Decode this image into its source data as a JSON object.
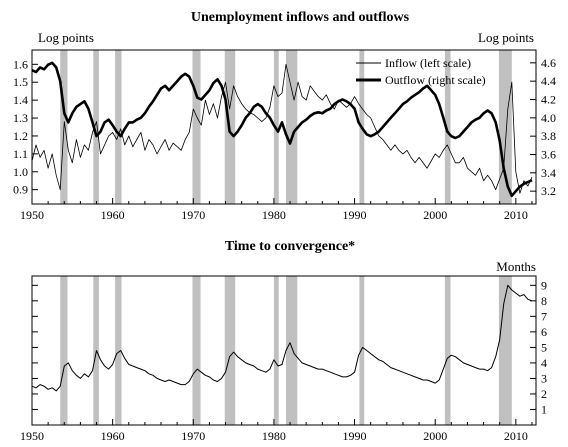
{
  "chart_data": [
    {
      "type": "line",
      "title": "Unemployment inflows and outflows",
      "ylabel_left": "Log points",
      "ylabel_right": "Log points",
      "xlim": [
        1950,
        2012.5
      ],
      "ylim_left": [
        0.82,
        1.68
      ],
      "ylim_right": [
        3.06,
        4.74
      ],
      "xticks": [
        1950,
        1960,
        1970,
        1980,
        1990,
        2000,
        2010
      ],
      "yticks_left": [
        0.9,
        1.0,
        1.1,
        1.2,
        1.3,
        1.4,
        1.5,
        1.6
      ],
      "yticks_left_labels": [
        "0.9",
        "1.0",
        "1.1",
        "1.2",
        "1.3",
        "1.4",
        "1.5",
        "1.6"
      ],
      "yticks_right": [
        3.2,
        3.4,
        3.6,
        3.8,
        4.0,
        4.2,
        4.4,
        4.6
      ],
      "yticks_right_labels": [
        "3.2",
        "3.4",
        "3.6",
        "3.8",
        "4.0",
        "4.2",
        "4.4",
        "4.6"
      ],
      "legend_position": "top-right",
      "recessions": [
        [
          1953.5,
          1954.4
        ],
        [
          1957.6,
          1958.3
        ],
        [
          1960.3,
          1961.1
        ],
        [
          1969.9,
          1970.9
        ],
        [
          1973.9,
          1975.2
        ],
        [
          1980.0,
          1980.6
        ],
        [
          1981.5,
          1982.9
        ],
        [
          1990.6,
          1991.2
        ],
        [
          2001.2,
          2001.9
        ],
        [
          2007.9,
          2009.5
        ]
      ],
      "series": [
        {
          "name": "Inflow (left scale)",
          "axis": "left",
          "style": "thin",
          "x": [
            1950,
            1950.5,
            1951,
            1951.5,
            1952,
            1952.5,
            1953,
            1953.5,
            1954,
            1954.5,
            1955,
            1955.5,
            1956,
            1956.5,
            1957,
            1957.5,
            1958,
            1958.5,
            1959,
            1959.5,
            1960,
            1960.5,
            1961,
            1961.5,
            1962,
            1962.5,
            1963,
            1963.5,
            1964,
            1964.5,
            1965,
            1965.5,
            1966,
            1966.5,
            1967,
            1967.5,
            1968,
            1968.5,
            1969,
            1969.5,
            1970,
            1970.5,
            1971,
            1971.5,
            1972,
            1972.5,
            1973,
            1973.5,
            1974,
            1974.5,
            1975,
            1975.5,
            1976,
            1976.5,
            1977,
            1977.5,
            1978,
            1978.5,
            1979,
            1979.5,
            1980,
            1980.5,
            1981,
            1981.5,
            1982,
            1982.5,
            1983,
            1983.5,
            1984,
            1984.5,
            1985,
            1985.5,
            1986,
            1986.5,
            1987,
            1987.5,
            1988,
            1988.5,
            1989,
            1989.5,
            1990,
            1990.5,
            1991,
            1991.5,
            1992,
            1992.5,
            1993,
            1993.5,
            1994,
            1994.5,
            1995,
            1995.5,
            1996,
            1996.5,
            1997,
            1997.5,
            1998,
            1998.5,
            1999,
            1999.5,
            2000,
            2000.5,
            2001,
            2001.5,
            2002,
            2002.5,
            2003,
            2003.5,
            2004,
            2004.5,
            2005,
            2005.5,
            2006,
            2006.5,
            2007,
            2007.5,
            2008,
            2008.5,
            2009,
            2009.5,
            2010,
            2010.5,
            2011,
            2011.5,
            2012
          ],
          "y": [
            1.06,
            1.15,
            1.08,
            1.12,
            1.02,
            1.1,
            0.98,
            0.9,
            1.28,
            1.12,
            1.05,
            1.18,
            1.08,
            1.15,
            1.12,
            1.22,
            1.28,
            1.1,
            1.15,
            1.2,
            1.22,
            1.18,
            1.24,
            1.15,
            1.2,
            1.14,
            1.18,
            1.22,
            1.12,
            1.18,
            1.15,
            1.1,
            1.14,
            1.18,
            1.12,
            1.16,
            1.14,
            1.12,
            1.18,
            1.22,
            1.35,
            1.3,
            1.26,
            1.4,
            1.32,
            1.38,
            1.3,
            1.42,
            1.5,
            1.35,
            1.48,
            1.42,
            1.38,
            1.35,
            1.33,
            1.32,
            1.3,
            1.28,
            1.3,
            1.36,
            1.48,
            1.42,
            1.44,
            1.6,
            1.5,
            1.4,
            1.5,
            1.42,
            1.4,
            1.48,
            1.45,
            1.42,
            1.4,
            1.43,
            1.38,
            1.35,
            1.4,
            1.38,
            1.36,
            1.38,
            1.42,
            1.38,
            1.35,
            1.32,
            1.3,
            1.25,
            1.2,
            1.18,
            1.15,
            1.12,
            1.15,
            1.12,
            1.1,
            1.12,
            1.08,
            1.05,
            1.08,
            1.05,
            1.02,
            1.06,
            1.1,
            1.08,
            1.12,
            1.15,
            1.1,
            1.05,
            1.05,
            1.08,
            1.02,
            1.0,
            0.98,
            1.02,
            0.95,
            0.98,
            0.95,
            0.9,
            0.96,
            1.02,
            1.35,
            1.5,
            1.0,
            0.88,
            0.95,
            0.92,
            0.97
          ]
        },
        {
          "name": "Outflow (right scale)",
          "axis": "right",
          "style": "thick",
          "x": [
            1950,
            1950.5,
            1951,
            1951.5,
            1952,
            1952.5,
            1953,
            1953.5,
            1954,
            1954.5,
            1955,
            1955.5,
            1956,
            1956.5,
            1957,
            1957.5,
            1958,
            1958.5,
            1959,
            1959.5,
            1960,
            1960.5,
            1961,
            1961.5,
            1962,
            1962.5,
            1963,
            1963.5,
            1964,
            1964.5,
            1965,
            1965.5,
            1966,
            1966.5,
            1967,
            1967.5,
            1968,
            1968.5,
            1969,
            1969.5,
            1970,
            1970.5,
            1971,
            1971.5,
            1972,
            1972.5,
            1973,
            1973.5,
            1974,
            1974.5,
            1975,
            1975.5,
            1976,
            1976.5,
            1977,
            1977.5,
            1978,
            1978.5,
            1979,
            1979.5,
            1980,
            1980.5,
            1981,
            1981.5,
            1982,
            1982.5,
            1983,
            1983.5,
            1984,
            1984.5,
            1985,
            1985.5,
            1986,
            1986.5,
            1987,
            1987.5,
            1988,
            1988.5,
            1989,
            1989.5,
            1990,
            1990.5,
            1991,
            1991.5,
            1992,
            1992.5,
            1993,
            1993.5,
            1994,
            1994.5,
            1995,
            1995.5,
            1996,
            1996.5,
            1997,
            1997.5,
            1998,
            1998.5,
            1999,
            1999.5,
            2000,
            2000.5,
            2001,
            2001.5,
            2002,
            2002.5,
            2003,
            2003.5,
            2004,
            2004.5,
            2005,
            2005.5,
            2006,
            2006.5,
            2007,
            2007.5,
            2008,
            2008.5,
            2009,
            2009.5,
            2010,
            2010.5,
            2011,
            2011.5,
            2012
          ],
          "y": [
            4.52,
            4.5,
            4.55,
            4.53,
            4.58,
            4.6,
            4.55,
            4.4,
            4.05,
            3.95,
            4.05,
            4.12,
            4.15,
            4.18,
            4.1,
            3.95,
            3.8,
            3.85,
            3.95,
            3.98,
            3.92,
            3.85,
            3.8,
            3.88,
            3.95,
            3.95,
            3.98,
            4.0,
            4.05,
            4.12,
            4.18,
            4.25,
            4.32,
            4.35,
            4.3,
            4.35,
            4.4,
            4.45,
            4.48,
            4.45,
            4.35,
            4.22,
            4.2,
            4.25,
            4.3,
            4.38,
            4.42,
            4.35,
            4.2,
            3.85,
            3.8,
            3.85,
            3.92,
            4.0,
            4.05,
            4.12,
            4.15,
            4.12,
            4.05,
            4.0,
            3.92,
            3.85,
            3.95,
            3.82,
            3.72,
            3.85,
            3.9,
            3.95,
            3.98,
            4.02,
            4.05,
            4.06,
            4.05,
            4.08,
            4.1,
            4.15,
            4.18,
            4.2,
            4.18,
            4.15,
            4.1,
            3.95,
            3.88,
            3.82,
            3.8,
            3.82,
            3.85,
            3.9,
            3.95,
            4.0,
            4.05,
            4.1,
            4.15,
            4.18,
            4.22,
            4.25,
            4.28,
            4.32,
            4.35,
            4.3,
            4.25,
            4.15,
            4.0,
            3.85,
            3.8,
            3.78,
            3.8,
            3.85,
            3.9,
            3.95,
            3.98,
            4.0,
            4.05,
            4.08,
            4.05,
            3.95,
            3.75,
            3.45,
            3.25,
            3.15,
            3.2,
            3.25,
            3.28,
            3.3,
            3.32
          ]
        }
      ]
    },
    {
      "type": "line",
      "title": "Time to convergence*",
      "ylabel_right": "Months",
      "xlim": [
        1950,
        2012.5
      ],
      "ylim": [
        0,
        9.6
      ],
      "xticks": [
        1950,
        1960,
        1970,
        1980,
        1990,
        2000,
        2010
      ],
      "yticks": [
        1,
        2,
        3,
        4,
        5,
        6,
        7,
        8,
        9
      ],
      "ytick_labels": [
        "1",
        "2",
        "3",
        "4",
        "5",
        "6",
        "7",
        "8",
        "9"
      ],
      "recessions": [
        [
          1953.5,
          1954.4
        ],
        [
          1957.6,
          1958.3
        ],
        [
          1960.3,
          1961.1
        ],
        [
          1969.9,
          1970.9
        ],
        [
          1973.9,
          1975.2
        ],
        [
          1980.0,
          1980.6
        ],
        [
          1981.5,
          1982.9
        ],
        [
          1990.6,
          1991.2
        ],
        [
          2001.2,
          2001.9
        ],
        [
          2007.9,
          2009.5
        ]
      ],
      "series": [
        {
          "style": "thin",
          "x": [
            1950,
            1950.5,
            1951,
            1951.5,
            1952,
            1952.5,
            1953,
            1953.5,
            1954,
            1954.5,
            1955,
            1955.5,
            1956,
            1956.5,
            1957,
            1957.5,
            1958,
            1958.5,
            1959,
            1959.5,
            1960,
            1960.5,
            1961,
            1961.5,
            1962,
            1962.5,
            1963,
            1963.5,
            1964,
            1964.5,
            1965,
            1965.5,
            1966,
            1966.5,
            1967,
            1967.5,
            1968,
            1968.5,
            1969,
            1969.5,
            1970,
            1970.5,
            1971,
            1971.5,
            1972,
            1972.5,
            1973,
            1973.5,
            1974,
            1974.5,
            1975,
            1975.5,
            1976,
            1976.5,
            1977,
            1977.5,
            1978,
            1978.5,
            1979,
            1979.5,
            1980,
            1980.5,
            1981,
            1981.5,
            1982,
            1982.5,
            1983,
            1983.5,
            1984,
            1984.5,
            1985,
            1985.5,
            1986,
            1986.5,
            1987,
            1987.5,
            1988,
            1988.5,
            1989,
            1989.5,
            1990,
            1990.5,
            1991,
            1991.5,
            1992,
            1992.5,
            1993,
            1993.5,
            1994,
            1994.5,
            1995,
            1995.5,
            1996,
            1996.5,
            1997,
            1997.5,
            1998,
            1998.5,
            1999,
            1999.5,
            2000,
            2000.5,
            2001,
            2001.5,
            2002,
            2002.5,
            2003,
            2003.5,
            2004,
            2004.5,
            2005,
            2005.5,
            2006,
            2006.5,
            2007,
            2007.5,
            2008,
            2008.5,
            2009,
            2009.5,
            2010,
            2010.5,
            2011,
            2011.5,
            2012
          ],
          "y": [
            2.5,
            2.4,
            2.6,
            2.5,
            2.3,
            2.4,
            2.2,
            2.5,
            3.8,
            4.0,
            3.5,
            3.2,
            3.0,
            3.3,
            3.1,
            3.5,
            4.8,
            4.2,
            3.8,
            3.6,
            3.9,
            4.6,
            4.8,
            4.3,
            3.9,
            3.8,
            3.7,
            3.6,
            3.5,
            3.3,
            3.2,
            3.0,
            2.9,
            2.8,
            2.9,
            2.8,
            2.7,
            2.6,
            2.6,
            2.8,
            3.3,
            3.6,
            3.4,
            3.2,
            3.1,
            2.9,
            2.8,
            3.0,
            3.4,
            4.4,
            4.7,
            4.4,
            4.2,
            4.0,
            3.9,
            3.8,
            3.6,
            3.5,
            3.4,
            3.6,
            4.2,
            3.8,
            3.9,
            4.8,
            5.3,
            4.6,
            4.3,
            4.0,
            3.9,
            3.8,
            3.7,
            3.6,
            3.6,
            3.5,
            3.4,
            3.3,
            3.2,
            3.1,
            3.1,
            3.2,
            3.4,
            4.5,
            5.0,
            4.8,
            4.6,
            4.4,
            4.2,
            4.1,
            3.9,
            3.7,
            3.6,
            3.5,
            3.4,
            3.3,
            3.2,
            3.1,
            3.0,
            2.9,
            2.9,
            2.8,
            2.7,
            2.9,
            3.6,
            4.3,
            4.5,
            4.4,
            4.2,
            4.0,
            3.9,
            3.8,
            3.7,
            3.6,
            3.6,
            3.5,
            3.7,
            4.4,
            5.5,
            7.8,
            9.0,
            8.7,
            8.5,
            8.3,
            8.4,
            8.1,
            8.0
          ]
        }
      ]
    }
  ]
}
